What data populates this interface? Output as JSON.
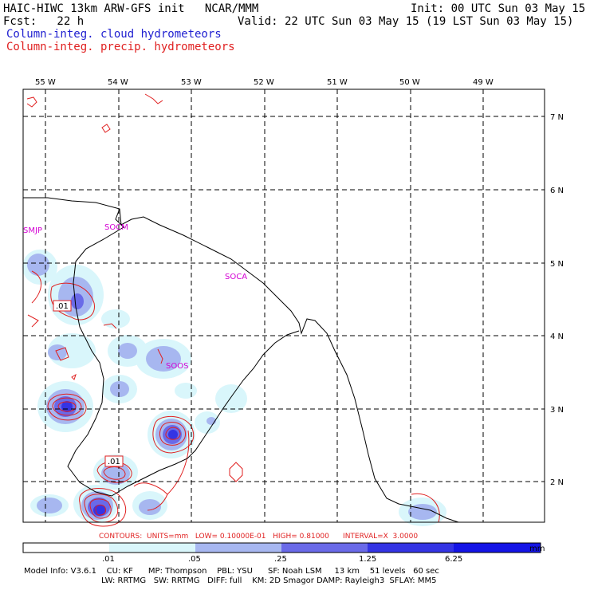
{
  "header": {
    "title_left": "HAIC-HIWC 13km ARW-GFS init   NCAR/MMM",
    "init": "Init: 00 UTC Sun 03 May 15",
    "fcst_label": "Fcst:   22 h",
    "valid": "Valid: 22 UTC Sun 03 May 15 (19 LST Sun 03 May 15)",
    "field1": "Column-integ. cloud hydrometeors",
    "field2": "Column-integ. precip. hydrometeors"
  },
  "axes": {
    "lon_labels": [
      "55 W",
      "54 W",
      "53 W",
      "52 W",
      "51 W",
      "50 W",
      "49 W"
    ],
    "lat_labels": [
      "7 N",
      "6 N",
      "5 N",
      "4 N",
      "3 N",
      "2 N"
    ]
  },
  "stations": [
    "SMJP",
    "SOCM",
    "SOCA",
    "SOOS"
  ],
  "contour_labels": [
    ".01",
    ".01"
  ],
  "contour_info": "CONTOURS:  UNITS=mm   LOW= 0.10000E-01   HIGH= 0.81000      INTERVAL=X  3.0000",
  "colorbar": {
    "ticks": [
      ".01",
      ".05",
      ".25",
      "1.25",
      "6.25"
    ],
    "unit": "mm",
    "colors": [
      "#ffffff",
      "#d9f6fb",
      "#a7b7f0",
      "#6a6ae8",
      "#3434e4",
      "#1414e6"
    ]
  },
  "model_info": {
    "line1": "Model Info: V3.6.1    CU: KF      MP: Thompson    PBL: YSU      SF: Noah LSM     13 km    51 levels   60 sec",
    "line2": "LW: RRTMG   SW: RRTMG   DIFF: full    KM: 2D Smagor DAMP: Rayleigh3  SFLAY: MM5"
  }
}
